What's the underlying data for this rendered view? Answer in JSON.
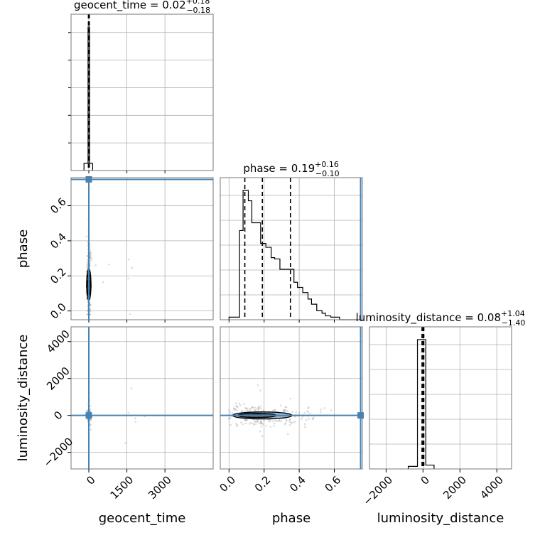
{
  "chart_data": {
    "type": "corner",
    "parameters": [
      "geocent_time",
      "phase",
      "luminosity_distance"
    ],
    "truths": {
      "geocent_time": 0,
      "phase": 0.75,
      "luminosity_distance": 0
    },
    "ranges": {
      "geocent_time": [
        -700,
        4900
      ],
      "phase": [
        -0.05,
        0.76
      ],
      "luminosity_distance": [
        -2900,
        4800
      ]
    },
    "titles": {
      "geocent_time": {
        "label": "geocent_time = 0.02",
        "plus": "+0.18",
        "minus": "−0.18"
      },
      "phase": {
        "label": "phase = 0.19",
        "plus": "+0.16",
        "minus": "−0.10"
      },
      "luminosity_distance": {
        "label": "luminosity_distance = 0.08",
        "plus": "+1.04",
        "minus": "−1.40"
      }
    },
    "ticks": {
      "geocent_time": {
        "values": [
          0,
          1500,
          3000
        ],
        "labels": [
          "0",
          "1500",
          "3000"
        ]
      },
      "phase": {
        "values": [
          0.0,
          0.2,
          0.4,
          0.6
        ],
        "labels": [
          "0.0",
          "0.2",
          "0.4",
          "0.6"
        ]
      },
      "luminosity_distance": {
        "values": [
          -2000,
          0,
          2000,
          4000
        ],
        "labels": [
          "−2000",
          "0",
          "2000",
          "4000"
        ]
      }
    },
    "histograms": {
      "geocent_time": {
        "edges": [
          -190,
          -30,
          30,
          150
        ],
        "counts": [
          0.05,
          1.0,
          0.05
        ],
        "quantiles": [
          -0.16,
          0.02,
          0.2
        ]
      },
      "phase": {
        "edges": [
          0.0,
          0.04,
          0.06,
          0.08,
          0.11,
          0.13,
          0.16,
          0.18,
          0.21,
          0.24,
          0.26,
          0.29,
          0.31,
          0.34,
          0.37,
          0.39,
          0.42,
          0.45,
          0.47,
          0.5,
          0.53,
          0.55,
          0.58,
          0.61,
          0.63,
          0.66,
          0.68,
          0.71,
          0.75
        ],
        "counts": [
          0.02,
          0.02,
          0.69,
          1.0,
          0.92,
          0.75,
          0.75,
          0.59,
          0.56,
          0.48,
          0.47,
          0.39,
          0.39,
          0.39,
          0.29,
          0.25,
          0.21,
          0.16,
          0.12,
          0.07,
          0.05,
          0.03,
          0.02,
          0.02,
          0.0,
          0.0,
          0.0,
          0.0
        ],
        "quantiles": [
          0.09,
          0.19,
          0.35
        ]
      },
      "luminosity_distance": {
        "edges": [
          -800,
          -300,
          150,
          600
        ],
        "counts": [
          0.02,
          1.0,
          0.03
        ],
        "quantiles": [
          -1.32,
          0.08,
          1.12
        ]
      }
    },
    "grid": true,
    "truth_color": "#4682b4",
    "contour_color": "#000000",
    "fill_color": "#4682b4"
  }
}
